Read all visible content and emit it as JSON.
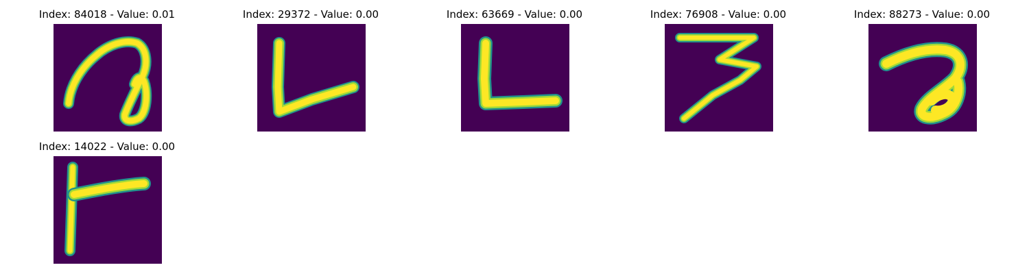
{
  "colors": {
    "background": "#440154",
    "stroke_core": "#fde725",
    "stroke_mid": "#a0da39",
    "stroke_edge": "#21918c"
  },
  "panels": [
    {
      "title": "Index: 84018 - Value: 0.01",
      "glyph": "loop-hook"
    },
    {
      "title": "Index: 29372 - Value: 0.00",
      "glyph": "l-shape-tilted"
    },
    {
      "title": "Index: 63669 - Value: 0.00",
      "glyph": "l-shape"
    },
    {
      "title": "Index: 76908 - Value: 0.00",
      "glyph": "three-shape"
    },
    {
      "title": "Index: 88273 - Value: 0.00",
      "glyph": "hook-shape"
    },
    {
      "title": "Index: 14022 - Value: 0.00",
      "glyph": "r-shape"
    }
  ]
}
